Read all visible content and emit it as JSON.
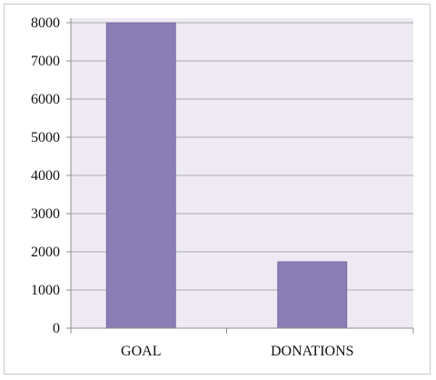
{
  "chart_data": {
    "type": "bar",
    "categories": [
      "GOAL",
      "DONATIONS"
    ],
    "values": [
      8000,
      1740
    ],
    "title": "",
    "xlabel": "",
    "ylabel": "",
    "ylim": [
      0,
      8000
    ],
    "yticks": [
      0,
      1000,
      2000,
      3000,
      4000,
      5000,
      6000,
      7000,
      8000
    ],
    "grid": true,
    "legend": "none",
    "colors": {
      "bar": "#8b7db5",
      "bar_edge": "#6f6198",
      "plot_bg": "#eeeaf3",
      "grid": "#a9a9a9",
      "axis": "#8c8c8c"
    }
  }
}
